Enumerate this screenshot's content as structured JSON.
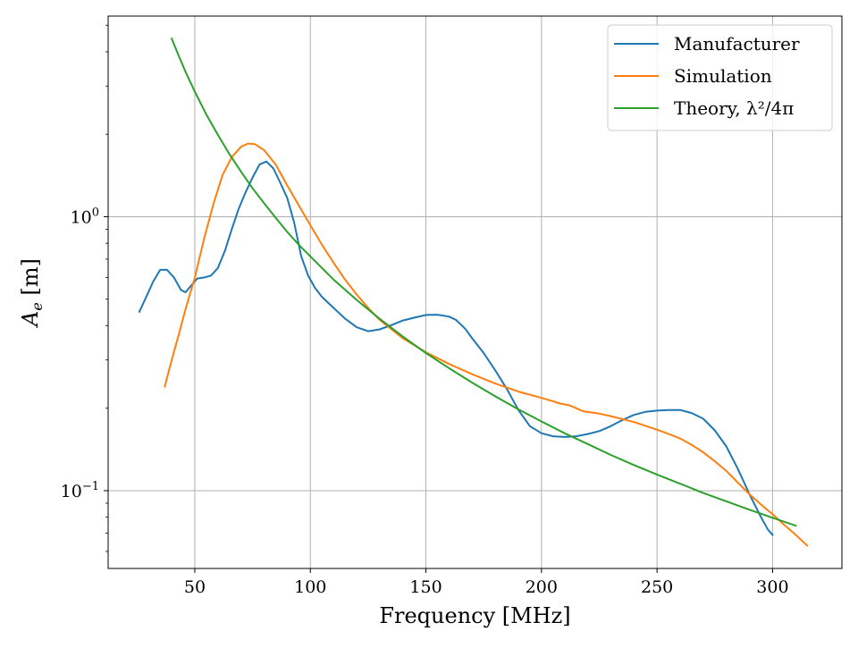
{
  "chart_data": {
    "type": "line",
    "xlabel": "Frequency [MHz]",
    "ylabel_base": "A",
    "ylabel_sub": "e",
    "ylabel_unit": " [m]",
    "xlim": [
      12.5,
      330
    ],
    "ylim": [
      0.052,
      5.4
    ],
    "yscale": "log",
    "grid": true,
    "legend_position": "top-right",
    "x_ticks": [
      {
        "value": 50,
        "label": "50"
      },
      {
        "value": 100,
        "label": "100"
      },
      {
        "value": 150,
        "label": "150"
      },
      {
        "value": 200,
        "label": "200"
      },
      {
        "value": 250,
        "label": "250"
      },
      {
        "value": 300,
        "label": "300"
      }
    ],
    "y_major_ticks": [
      {
        "value": 0.1,
        "base": "10",
        "exp": "−1"
      },
      {
        "value": 1,
        "base": "10",
        "exp": "0"
      }
    ],
    "y_minor_ticks": [
      0.06,
      0.07,
      0.08,
      0.09,
      0.2,
      0.3,
      0.4,
      0.5,
      0.6,
      0.7,
      0.8,
      0.9,
      2,
      3,
      4,
      5
    ],
    "series": [
      {
        "name": "Manufacturer",
        "color": "#1f77b4",
        "points": [
          [
            26,
            0.45
          ],
          [
            29,
            0.51
          ],
          [
            32,
            0.58
          ],
          [
            35,
            0.64
          ],
          [
            38,
            0.64
          ],
          [
            41,
            0.6
          ],
          [
            44,
            0.54
          ],
          [
            46,
            0.53
          ],
          [
            48,
            0.555
          ],
          [
            51,
            0.595
          ],
          [
            54,
            0.6
          ],
          [
            57,
            0.61
          ],
          [
            60,
            0.65
          ],
          [
            63,
            0.75
          ],
          [
            66,
            0.9
          ],
          [
            69,
            1.07
          ],
          [
            72,
            1.23
          ],
          [
            75,
            1.39
          ],
          [
            78,
            1.55
          ],
          [
            81,
            1.59
          ],
          [
            84,
            1.5
          ],
          [
            87,
            1.33
          ],
          [
            90,
            1.17
          ],
          [
            93,
            0.95
          ],
          [
            96,
            0.72
          ],
          [
            99,
            0.61
          ],
          [
            102,
            0.55
          ],
          [
            105,
            0.51
          ],
          [
            110,
            0.465
          ],
          [
            115,
            0.425
          ],
          [
            120,
            0.395
          ],
          [
            125,
            0.382
          ],
          [
            130,
            0.388
          ],
          [
            135,
            0.402
          ],
          [
            140,
            0.418
          ],
          [
            145,
            0.428
          ],
          [
            150,
            0.438
          ],
          [
            155,
            0.439
          ],
          [
            160,
            0.432
          ],
          [
            163,
            0.42
          ],
          [
            167,
            0.39
          ],
          [
            170,
            0.36
          ],
          [
            175,
            0.318
          ],
          [
            180,
            0.275
          ],
          [
            185,
            0.235
          ],
          [
            190,
            0.197
          ],
          [
            195,
            0.172
          ],
          [
            200,
            0.162
          ],
          [
            205,
            0.158
          ],
          [
            210,
            0.157
          ],
          [
            215,
            0.158
          ],
          [
            220,
            0.161
          ],
          [
            225,
            0.165
          ],
          [
            230,
            0.172
          ],
          [
            235,
            0.181
          ],
          [
            240,
            0.189
          ],
          [
            245,
            0.194
          ],
          [
            250,
            0.196
          ],
          [
            255,
            0.197
          ],
          [
            260,
            0.197
          ],
          [
            265,
            0.192
          ],
          [
            270,
            0.183
          ],
          [
            275,
            0.166
          ],
          [
            280,
            0.145
          ],
          [
            285,
            0.12
          ],
          [
            290,
            0.097
          ],
          [
            295,
            0.08
          ],
          [
            298,
            0.072
          ],
          [
            300,
            0.069
          ]
        ]
      },
      {
        "name": "Simulation",
        "color": "#ff7f0e",
        "points": [
          [
            37,
            0.24
          ],
          [
            40,
            0.3
          ],
          [
            43,
            0.37
          ],
          [
            46,
            0.46
          ],
          [
            50,
            0.6
          ],
          [
            54,
            0.83
          ],
          [
            58,
            1.11
          ],
          [
            62,
            1.42
          ],
          [
            66,
            1.65
          ],
          [
            70,
            1.8
          ],
          [
            73,
            1.85
          ],
          [
            76,
            1.84
          ],
          [
            80,
            1.75
          ],
          [
            85,
            1.55
          ],
          [
            90,
            1.3
          ],
          [
            95,
            1.1
          ],
          [
            100,
            0.93
          ],
          [
            105,
            0.79
          ],
          [
            110,
            0.68
          ],
          [
            115,
            0.59
          ],
          [
            120,
            0.52
          ],
          [
            125,
            0.465
          ],
          [
            130,
            0.42
          ],
          [
            140,
            0.36
          ],
          [
            150,
            0.32
          ],
          [
            160,
            0.29
          ],
          [
            170,
            0.266
          ],
          [
            180,
            0.246
          ],
          [
            190,
            0.23
          ],
          [
            200,
            0.218
          ],
          [
            205,
            0.212
          ],
          [
            208,
            0.208
          ],
          [
            212,
            0.205
          ],
          [
            215,
            0.2
          ],
          [
            218,
            0.195
          ],
          [
            225,
            0.191
          ],
          [
            230,
            0.187
          ],
          [
            240,
            0.178
          ],
          [
            250,
            0.167
          ],
          [
            255,
            0.161
          ],
          [
            260,
            0.155
          ],
          [
            265,
            0.147
          ],
          [
            270,
            0.138
          ],
          [
            275,
            0.128
          ],
          [
            280,
            0.118
          ],
          [
            285,
            0.107
          ],
          [
            290,
            0.097
          ],
          [
            295,
            0.089
          ],
          [
            300,
            0.082
          ],
          [
            305,
            0.075
          ],
          [
            310,
            0.069
          ],
          [
            315,
            0.063
          ]
        ]
      },
      {
        "name": "Theory, λ²/4π",
        "color": "#2ca02c",
        "points": [
          [
            40,
            4.47
          ],
          [
            43,
            3.87
          ],
          [
            46,
            3.38
          ],
          [
            50,
            2.86
          ],
          [
            55,
            2.36
          ],
          [
            60,
            1.99
          ],
          [
            65,
            1.69
          ],
          [
            70,
            1.46
          ],
          [
            75,
            1.27
          ],
          [
            80,
            1.12
          ],
          [
            85,
            0.99
          ],
          [
            90,
            0.88
          ],
          [
            95,
            0.79
          ],
          [
            100,
            0.716
          ],
          [
            110,
            0.59
          ],
          [
            120,
            0.497
          ],
          [
            130,
            0.424
          ],
          [
            140,
            0.365
          ],
          [
            150,
            0.318
          ],
          [
            160,
            0.28
          ],
          [
            170,
            0.248
          ],
          [
            180,
            0.221
          ],
          [
            190,
            0.198
          ],
          [
            200,
            0.179
          ],
          [
            210,
            0.162
          ],
          [
            220,
            0.148
          ],
          [
            230,
            0.135
          ],
          [
            240,
            0.124
          ],
          [
            250,
            0.1145
          ],
          [
            260,
            0.106
          ],
          [
            270,
            0.098
          ],
          [
            280,
            0.0914
          ],
          [
            290,
            0.0852
          ],
          [
            300,
            0.0796
          ],
          [
            310,
            0.0745
          ]
        ]
      }
    ]
  }
}
